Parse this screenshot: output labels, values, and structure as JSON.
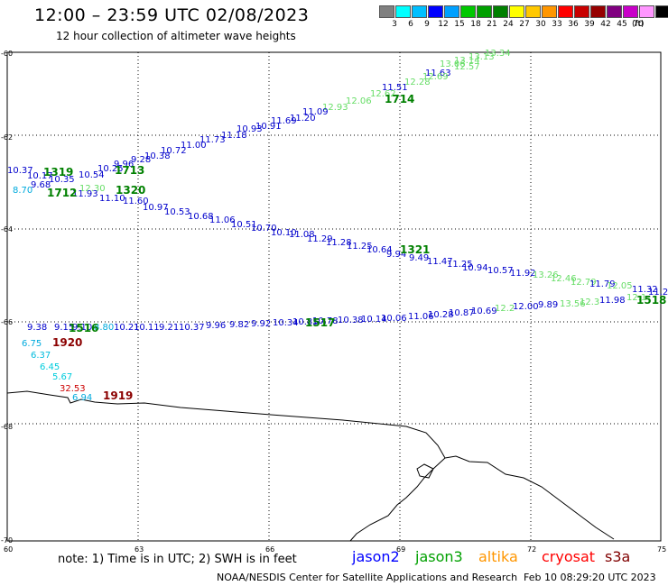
{
  "header": {
    "title": "12:00 – 23:59 UTC 02/08/2023",
    "subtitle": "12 hour collection of altimeter wave heights"
  },
  "legend": {
    "colors": [
      "#808080",
      "#00ffff",
      "#00bfff",
      "#0000ff",
      "#00a0ff",
      "#00c800",
      "#00a000",
      "#008000",
      "#ffff00",
      "#ffc800",
      "#ff9600",
      "#ff0000",
      "#c80000",
      "#960000",
      "#800080",
      "#c800c8",
      "#ff96ff",
      "#000000"
    ],
    "labels": [
      "3",
      "6",
      "9",
      "12",
      "15",
      "18",
      "21",
      "24",
      "27",
      "30",
      "33",
      "36",
      "39",
      "42",
      "45",
      "70"
    ],
    "unit": "(ft)"
  },
  "axes": {
    "lat_labels": [
      "-60",
      "-62",
      "-64",
      "-66",
      "-68",
      "-70"
    ],
    "lon_labels": [
      "60",
      "63",
      "66",
      "69",
      "72",
      "75"
    ]
  },
  "tracks": [
    {
      "label": "1714",
      "color": "#008000"
    },
    {
      "label": "1713",
      "color": "#008000"
    },
    {
      "label": "1319",
      "color": "#008000"
    },
    {
      "label": "1712",
      "color": "#008000"
    },
    {
      "label": "1320",
      "color": "#008000"
    },
    {
      "label": "1321",
      "color": "#008000"
    },
    {
      "label": "1518",
      "color": "#008000"
    },
    {
      "label": "1517",
      "color": "#008000"
    },
    {
      "label": "1516",
      "color": "#008000"
    },
    {
      "label": "1920",
      "color": "#8b0000"
    },
    {
      "label": "1919",
      "color": "#8b0000"
    }
  ],
  "values": [
    {
      "t": "13.34",
      "c": "#66dd66"
    },
    {
      "t": "13.13",
      "c": "#66dd66"
    },
    {
      "t": "13.14",
      "c": "#66dd66"
    },
    {
      "t": "13.06",
      "c": "#66dd66"
    },
    {
      "t": "12.57",
      "c": "#66dd66"
    },
    {
      "t": "11.63",
      "c": "#0000cc"
    },
    {
      "t": "12.69",
      "c": "#66dd66"
    },
    {
      "t": "12.28",
      "c": "#66dd66"
    },
    {
      "t": "11.51",
      "c": "#0000cc"
    },
    {
      "t": "12.62",
      "c": "#66dd66"
    },
    {
      "t": "12.06",
      "c": "#66dd66"
    },
    {
      "t": "12.93",
      "c": "#66dd66"
    },
    {
      "t": "11.09",
      "c": "#0000cc"
    },
    {
      "t": "11.20",
      "c": "#0000cc"
    },
    {
      "t": "11.69",
      "c": "#0000cc"
    },
    {
      "t": "10.91",
      "c": "#0000cc"
    },
    {
      "t": "10.93",
      "c": "#0000cc"
    },
    {
      "t": "11.18",
      "c": "#0000cc"
    },
    {
      "t": "11.73",
      "c": "#0000cc"
    },
    {
      "t": "11.00",
      "c": "#0000cc"
    },
    {
      "t": "10.72",
      "c": "#0000cc"
    },
    {
      "t": "10.38",
      "c": "#0000cc"
    },
    {
      "t": "9.28",
      "c": "#0000cc"
    },
    {
      "t": "9.96",
      "c": "#0000cc"
    },
    {
      "t": "10.25",
      "c": "#0000cc"
    },
    {
      "t": "10.37",
      "c": "#0000cc"
    },
    {
      "t": "10.54",
      "c": "#0000cc"
    },
    {
      "t": "10.35",
      "c": "#0000cc"
    },
    {
      "t": "10.17",
      "c": "#0000cc"
    },
    {
      "t": "9.68",
      "c": "#0000cc"
    },
    {
      "t": "8.70",
      "c": "#00aadd"
    },
    {
      "t": "12.30",
      "c": "#66dd66"
    },
    {
      "t": "11.93",
      "c": "#0000cc"
    },
    {
      "t": "11.10",
      "c": "#0000cc"
    },
    {
      "t": "11.60",
      "c": "#0000cc"
    },
    {
      "t": "10.97",
      "c": "#0000cc"
    },
    {
      "t": "10.53",
      "c": "#0000cc"
    },
    {
      "t": "10.68",
      "c": "#0000cc"
    },
    {
      "t": "11.06",
      "c": "#0000cc"
    },
    {
      "t": "10.51",
      "c": "#0000cc"
    },
    {
      "t": "10.70",
      "c": "#0000cc"
    },
    {
      "t": "10.10",
      "c": "#0000cc"
    },
    {
      "t": "11.08",
      "c": "#0000cc"
    },
    {
      "t": "11.29",
      "c": "#0000cc"
    },
    {
      "t": "11.28",
      "c": "#0000cc"
    },
    {
      "t": "11.25",
      "c": "#0000cc"
    },
    {
      "t": "10.64",
      "c": "#0000cc"
    },
    {
      "t": "9.94",
      "c": "#0000cc"
    },
    {
      "t": "9.49",
      "c": "#0000cc"
    },
    {
      "t": "11.47",
      "c": "#0000cc"
    },
    {
      "t": "11.25",
      "c": "#0000cc"
    },
    {
      "t": "10.94",
      "c": "#0000cc"
    },
    {
      "t": "10.57",
      "c": "#0000cc"
    },
    {
      "t": "11.92",
      "c": "#0000cc"
    },
    {
      "t": "13.26",
      "c": "#66dd66"
    },
    {
      "t": "12.46",
      "c": "#66dd66"
    },
    {
      "t": "12.79",
      "c": "#66dd66"
    },
    {
      "t": "11.79",
      "c": "#0000cc"
    },
    {
      "t": "12.05",
      "c": "#66dd66"
    },
    {
      "t": "11.32",
      "c": "#0000cc"
    },
    {
      "t": "11.22",
      "c": "#0000cc"
    },
    {
      "t": "9.38",
      "c": "#0000cc"
    },
    {
      "t": "9.15",
      "c": "#0000cc"
    },
    {
      "t": "9.10",
      "c": "#0000cc"
    },
    {
      "t": "8.80",
      "c": "#00aadd"
    },
    {
      "t": "10.21",
      "c": "#0000cc"
    },
    {
      "t": "10.11",
      "c": "#0000cc"
    },
    {
      "t": "9.21",
      "c": "#0000cc"
    },
    {
      "t": "10.37",
      "c": "#0000cc"
    },
    {
      "t": "9.96",
      "c": "#0000cc"
    },
    {
      "t": "9.82",
      "c": "#0000cc"
    },
    {
      "t": "9.92",
      "c": "#0000cc"
    },
    {
      "t": "10.34",
      "c": "#0000cc"
    },
    {
      "t": "10.85",
      "c": "#0000cc"
    },
    {
      "t": "10.78",
      "c": "#0000cc"
    },
    {
      "t": "10.38",
      "c": "#0000cc"
    },
    {
      "t": "10.14",
      "c": "#0000cc"
    },
    {
      "t": "10.06",
      "c": "#0000cc"
    },
    {
      "t": "11.06",
      "c": "#0000cc"
    },
    {
      "t": "10.28",
      "c": "#0000cc"
    },
    {
      "t": "10.87",
      "c": "#0000cc"
    },
    {
      "t": "10.69",
      "c": "#0000cc"
    },
    {
      "t": "12.2",
      "c": "#66dd66"
    },
    {
      "t": "12.00",
      "c": "#0000cc"
    },
    {
      "t": "9.89",
      "c": "#0000cc"
    },
    {
      "t": "13.56",
      "c": "#66dd66"
    },
    {
      "t": "12.3",
      "c": "#66dd66"
    },
    {
      "t": "11.98",
      "c": "#0000cc"
    },
    {
      "t": "12.1",
      "c": "#66dd66"
    },
    {
      "t": "6.75",
      "c": "#00aadd"
    },
    {
      "t": "6.37",
      "c": "#00bbdd"
    },
    {
      "t": "6.45",
      "c": "#00ccdd"
    },
    {
      "t": "5.67",
      "c": "#00ccdd"
    },
    {
      "t": "32.53",
      "c": "#cc0000"
    },
    {
      "t": "6.94",
      "c": "#00aadd"
    }
  ],
  "footer": {
    "note": "note:  1) Time is in UTC;  2) SWH is in feet",
    "satellites": [
      {
        "name": "jason2",
        "color": "#0000ff"
      },
      {
        "name": "jason3",
        "color": "#00a000"
      },
      {
        "name": "altika",
        "color": "#ff9600"
      },
      {
        "name": "cryosat",
        "color": "#ff0000"
      },
      {
        "name": "s3a",
        "color": "#800000"
      }
    ],
    "credit": "NOAA/NESDIS Center for Satellite Applications and Research",
    "timestamp": "Feb 10 08:29:20 UTC 2023"
  }
}
